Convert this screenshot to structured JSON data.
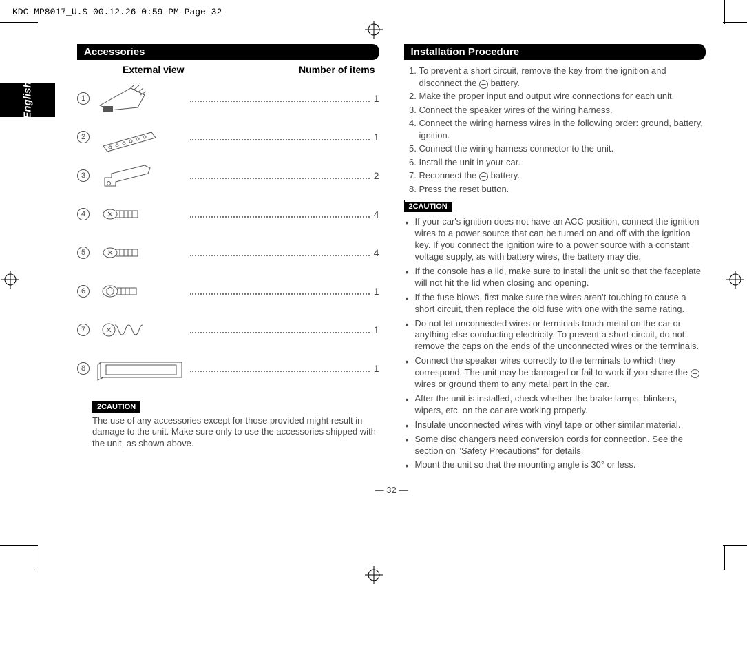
{
  "header": "KDC-MP8017_U.S  00.12.26 0:59 PM  Page 32",
  "side_tab": "English",
  "left": {
    "title": "Accessories",
    "head_left": "External view",
    "head_right": "Number of items",
    "items": [
      {
        "n": "1",
        "count": "1",
        "icon": "harness"
      },
      {
        "n": "2",
        "count": "1",
        "icon": "bracket"
      },
      {
        "n": "3",
        "count": "2",
        "icon": "key"
      },
      {
        "n": "4",
        "count": "4",
        "icon": "screw-flat"
      },
      {
        "n": "5",
        "count": "4",
        "icon": "screw-flat"
      },
      {
        "n": "6",
        "count": "1",
        "icon": "screw-hex"
      },
      {
        "n": "7",
        "count": "1",
        "icon": "spring"
      },
      {
        "n": "8",
        "count": "1",
        "icon": "trim"
      }
    ],
    "caution_label": "2CAUTION",
    "caution_text": "The use of any accessories except for those provided might result in damage to the unit. Make sure only to use the accessories shipped with the unit, as shown above."
  },
  "right": {
    "title": "Installation Procedure",
    "steps": [
      "To prevent a short circuit, remove the key from the ignition and disconnect the ⊖ battery.",
      "Make the proper input and output wire connections for each unit.",
      "Connect the speaker wires of the wiring harness.",
      "Connect the wiring harness wires in the following order: ground, battery, ignition.",
      "Connect the wiring harness connector to the unit.",
      "Install the unit in your car.",
      "Reconnect the ⊖ battery.",
      "Press the reset button."
    ],
    "caution_label": "2CAUTION",
    "bullets": [
      "If your car's ignition does not have an ACC position, connect the ignition wires to a power source that can be turned on and off with the ignition key. If you connect the ignition wire to a power source with a constant voltage supply, as with battery wires, the battery may die.",
      "If the console has a lid, make sure to install the unit so that the faceplate will not hit the lid when closing and opening.",
      "If the fuse blows, first make sure the wires aren't touching to cause a short circuit, then replace the old fuse with one with the same rating.",
      "Do not let unconnected wires or terminals touch metal on the car or anything else conducting electricity. To prevent a short circuit, do not remove the caps on the ends of the unconnected wires or the terminals.",
      "Connect the speaker wires correctly to the terminals to which they correspond. The unit may be damaged or fail to work if you share the ⊖ wires or ground them to any metal part in the car.",
      "After the unit is installed, check whether the brake lamps, blinkers, wipers, etc. on the car are working properly.",
      "Insulate unconnected wires with vinyl tape or other similar material.",
      "Some disc changers need conversion cords for connection. See the section on \"Safety Precautions\" for details.",
      "Mount the unit so that the mounting angle is 30° or less."
    ]
  },
  "page_num": "— 32 —"
}
